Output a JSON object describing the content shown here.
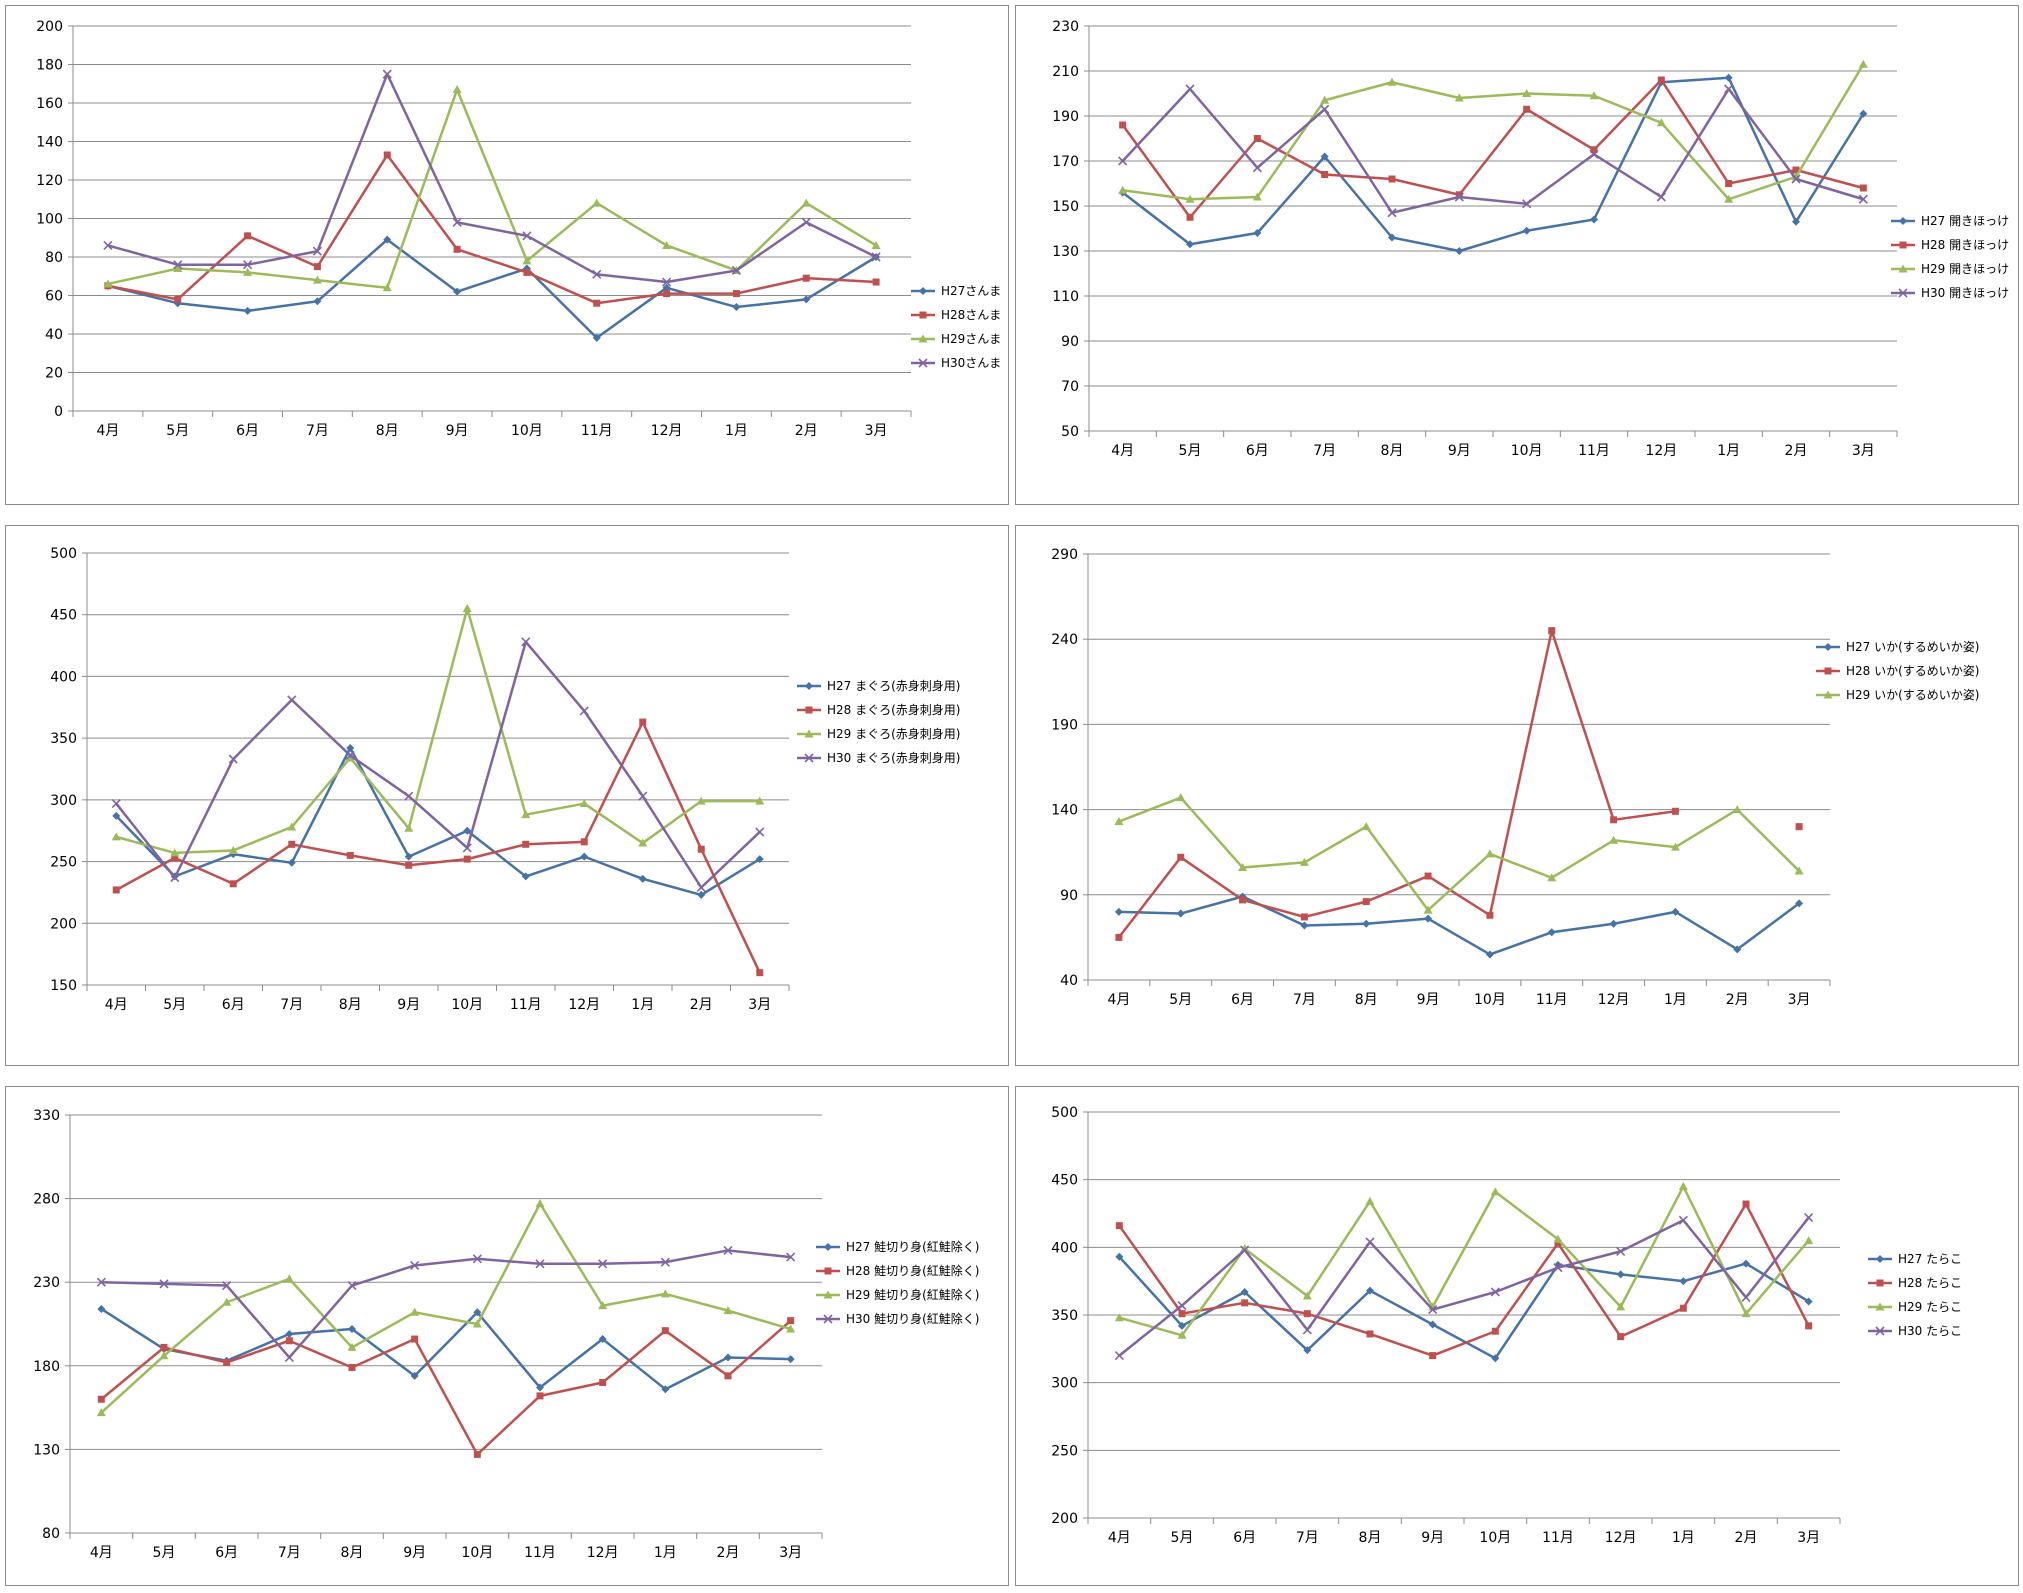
{
  "chart_data": [
    {
      "type": "line",
      "categories": [
        "4月",
        "5月",
        "6月",
        "7月",
        "8月",
        "9月",
        "10月",
        "11月",
        "12月",
        "1月",
        "2月",
        "3月"
      ],
      "ylim": [
        0,
        200
      ],
      "yticks": [
        0,
        20,
        40,
        60,
        80,
        100,
        120,
        140,
        160,
        180,
        200
      ],
      "grid": true,
      "legend": "right",
      "series": [
        {
          "name": "H27さんま",
          "color": "#4572A7",
          "marker": "diamond",
          "values": [
            65,
            56,
            52,
            57,
            89,
            62,
            74,
            38,
            64,
            54,
            58,
            80
          ]
        },
        {
          "name": "H28さんま",
          "color": "#C0504D",
          "marker": "square",
          "values": [
            65,
            58,
            91,
            75,
            133,
            84,
            72,
            56,
            61,
            61,
            69,
            67
          ]
        },
        {
          "name": "H29さんま",
          "color": "#9BBB59",
          "marker": "triangle",
          "values": [
            66,
            74,
            72,
            68,
            64,
            167,
            78,
            108,
            86,
            73,
            108,
            86
          ]
        },
        {
          "name": "H30さんま",
          "color": "#8064A2",
          "marker": "x",
          "values": [
            86,
            76,
            76,
            83,
            175,
            98,
            91,
            71,
            67,
            73,
            98,
            80
          ]
        }
      ]
    },
    {
      "type": "line",
      "categories": [
        "4月",
        "5月",
        "6月",
        "7月",
        "8月",
        "9月",
        "10月",
        "11月",
        "12月",
        "1月",
        "2月",
        "3月"
      ],
      "ylim": [
        50,
        230
      ],
      "yticks": [
        50,
        70,
        90,
        110,
        130,
        150,
        170,
        190,
        210,
        230
      ],
      "grid": true,
      "legend": "right",
      "series": [
        {
          "name": "H27 開きほっけ",
          "color": "#4572A7",
          "marker": "diamond",
          "values": [
            156,
            133,
            138,
            172,
            136,
            130,
            139,
            144,
            205,
            207,
            143,
            191
          ]
        },
        {
          "name": "H28 開きほっけ",
          "color": "#C0504D",
          "marker": "square",
          "values": [
            186,
            145,
            180,
            164,
            162,
            155,
            193,
            175,
            206,
            160,
            166,
            158
          ]
        },
        {
          "name": "H29 開きほっけ",
          "color": "#9BBB59",
          "marker": "triangle",
          "values": [
            157,
            153,
            154,
            197,
            205,
            198,
            200,
            199,
            187,
            153,
            163,
            213
          ]
        },
        {
          "name": "H30 開きほっけ",
          "color": "#8064A2",
          "marker": "x",
          "values": [
            170,
            202,
            167,
            193,
            147,
            154,
            151,
            173,
            154,
            202,
            162,
            153
          ]
        }
      ]
    },
    {
      "type": "line",
      "categories": [
        "4月",
        "5月",
        "6月",
        "7月",
        "8月",
        "9月",
        "10月",
        "11月",
        "12月",
        "1月",
        "2月",
        "3月"
      ],
      "ylim": [
        150,
        500
      ],
      "yticks": [
        150,
        200,
        250,
        300,
        350,
        400,
        450,
        500
      ],
      "grid": true,
      "legend": "right",
      "series": [
        {
          "name": "H27 まぐろ(赤身刺身用)",
          "color": "#4572A7",
          "marker": "diamond",
          "values": [
            287,
            238,
            256,
            249,
            342,
            254,
            275,
            238,
            254,
            236,
            223,
            252
          ]
        },
        {
          "name": "H28 まぐろ(赤身刺身用)",
          "color": "#C0504D",
          "marker": "square",
          "values": [
            227,
            253,
            232,
            264,
            255,
            247,
            252,
            264,
            266,
            363,
            260,
            160
          ]
        },
        {
          "name": "H29 まぐろ(赤身刺身用)",
          "color": "#9BBB59",
          "marker": "triangle",
          "values": [
            270,
            257,
            259,
            278,
            334,
            277,
            455,
            288,
            297,
            265,
            299,
            299
          ]
        },
        {
          "name": "H30 まぐろ(赤身刺身用)",
          "color": "#8064A2",
          "marker": "x",
          "values": [
            297,
            237,
            333,
            381,
            336,
            303,
            261,
            428,
            372,
            303,
            229,
            274
          ]
        }
      ]
    },
    {
      "type": "line",
      "categories": [
        "4月",
        "5月",
        "6月",
        "7月",
        "8月",
        "9月",
        "10月",
        "11月",
        "12月",
        "1月",
        "2月",
        "3月"
      ],
      "ylim": [
        40,
        290
      ],
      "yticks": [
        40,
        90,
        140,
        190,
        240,
        290
      ],
      "grid": true,
      "legend": "right",
      "series": [
        {
          "name": "H27 いか(するめいか姿)",
          "color": "#4572A7",
          "marker": "diamond",
          "values": [
            80,
            79,
            89,
            72,
            73,
            76,
            55,
            68,
            73,
            80,
            58,
            85
          ]
        },
        {
          "name": "H28 いか(するめいか姿)",
          "color": "#C0504D",
          "marker": "square",
          "values": [
            65,
            112,
            87,
            77,
            86,
            101,
            78,
            245,
            134,
            139,
            null,
            130
          ]
        },
        {
          "name": "H29 いか(するめいか姿)",
          "color": "#9BBB59",
          "marker": "triangle",
          "values": [
            133,
            147,
            106,
            109,
            130,
            81,
            114,
            100,
            122,
            118,
            140,
            104
          ]
        }
      ]
    },
    {
      "type": "line",
      "categories": [
        "4月",
        "5月",
        "6月",
        "7月",
        "8月",
        "9月",
        "10月",
        "11月",
        "12月",
        "1月",
        "2月",
        "3月"
      ],
      "ylim": [
        80,
        330
      ],
      "yticks": [
        80,
        130,
        180,
        230,
        280,
        330
      ],
      "grid": true,
      "legend": "right",
      "series": [
        {
          "name": "H27 鮭切り身(紅鮭除く)",
          "color": "#4572A7",
          "marker": "diamond",
          "values": [
            214,
            190,
            183,
            199,
            202,
            174,
            212,
            167,
            196,
            166,
            185,
            184
          ]
        },
        {
          "name": "H28 鮭切り身(紅鮭除く)",
          "color": "#C0504D",
          "marker": "square",
          "values": [
            160,
            191,
            182,
            195,
            179,
            196,
            127,
            162,
            170,
            201,
            174,
            207
          ]
        },
        {
          "name": "H29 鮭切り身(紅鮭除く)",
          "color": "#9BBB59",
          "marker": "triangle",
          "values": [
            152,
            186,
            218,
            232,
            191,
            212,
            205,
            277,
            216,
            223,
            213,
            202
          ]
        },
        {
          "name": "H30 鮭切り身(紅鮭除く)",
          "color": "#8064A2",
          "marker": "x",
          "values": [
            230,
            229,
            228,
            185,
            228,
            240,
            244,
            241,
            241,
            242,
            249,
            245
          ]
        }
      ]
    },
    {
      "type": "line",
      "categories": [
        "4月",
        "5月",
        "6月",
        "7月",
        "8月",
        "9月",
        "10月",
        "11月",
        "12月",
        "1月",
        "2月",
        "3月"
      ],
      "ylim": [
        200,
        500
      ],
      "yticks": [
        200,
        250,
        300,
        350,
        400,
        450,
        500
      ],
      "grid": true,
      "legend": "right",
      "series": [
        {
          "name": "H27 たらこ",
          "color": "#4572A7",
          "marker": "diamond",
          "values": [
            393,
            342,
            367,
            324,
            368,
            343,
            318,
            387,
            380,
            375,
            388,
            360
          ]
        },
        {
          "name": "H28 たらこ",
          "color": "#C0504D",
          "marker": "square",
          "values": [
            416,
            351,
            359,
            351,
            336,
            320,
            338,
            403,
            334,
            355,
            432,
            342
          ]
        },
        {
          "name": "H29 たらこ",
          "color": "#9BBB59",
          "marker": "triangle",
          "values": [
            348,
            335,
            399,
            364,
            434,
            356,
            441,
            406,
            356,
            445,
            351,
            405
          ]
        },
        {
          "name": "H30 たらこ",
          "color": "#8064A2",
          "marker": "x",
          "values": [
            320,
            357,
            398,
            339,
            404,
            354,
            367,
            385,
            397,
            420,
            363,
            422
          ]
        }
      ]
    }
  ]
}
